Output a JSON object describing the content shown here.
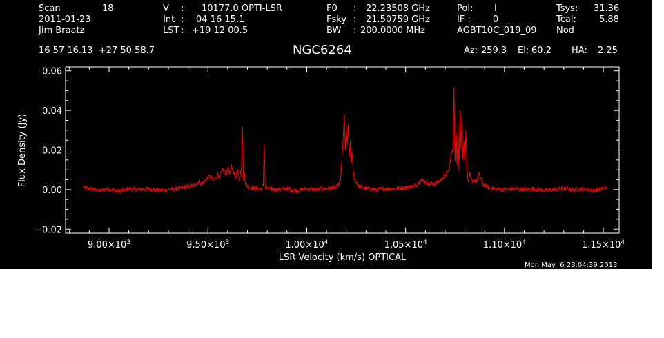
{
  "header": {
    "scan_label": "Scan",
    "scan_value": "18",
    "date": "2011-01-23",
    "observer": "Jim Braatz",
    "v_label": "V",
    "v_value": "10177.0 OPTI-LSR",
    "int_label": "Int",
    "int_value": "04 16 15.1",
    "lst_label": "LST",
    "lst_value": "+19 12 00.5",
    "f0_label": "F0",
    "f0_value": "22.23508 GHz",
    "fsky_label": "Fsky",
    "fsky_value": "21.50759 GHz",
    "bw_label": "BW",
    "bw_value": "200.0000 MHz",
    "pol_label": "Pol:",
    "pol_value": "I",
    "if_label": "IF :",
    "if_value": "0",
    "project": "AGBT10C_019_09",
    "tsys_label": "Tsys:",
    "tsys_value": "31.36",
    "tcal_label": "Tcal:",
    "tcal_value": "5.88",
    "mode": "Nod",
    "coords": "16 57 16.13  +27 50 58.7",
    "source": "NGC6264",
    "az_label": "Az:",
    "az_value": "259.3",
    "el_label": "El:",
    "el_value": "60.2",
    "ha_label": "HA:",
    "ha_value": "2.25",
    "timestamp": "Mon May  6 23:04:39 2013"
  },
  "chart_data": {
    "type": "line",
    "xlabel": "LSR Velocity (km/s) OPTICAL",
    "ylabel": "Flux Density (Jy)",
    "xlim": [
      8780,
      11580
    ],
    "ylim": [
      -0.022,
      0.062
    ],
    "xticks": [
      {
        "value": 9000,
        "mant": "9.00×10",
        "exp": "3"
      },
      {
        "value": 9500,
        "mant": "9.50×10",
        "exp": "3"
      },
      {
        "value": 10000,
        "mant": "1.00×10",
        "exp": "4"
      },
      {
        "value": 10500,
        "mant": "1.05×10",
        "exp": "4"
      },
      {
        "value": 11000,
        "mant": "1.10×10",
        "exp": "4"
      },
      {
        "value": 11500,
        "mant": "1.15×10",
        "exp": "4"
      }
    ],
    "yticks": [
      {
        "value": -0.02,
        "label": "−0.02"
      },
      {
        "value": 0.0,
        "label": "0.00"
      },
      {
        "value": 0.02,
        "label": "0.02"
      },
      {
        "value": 0.04,
        "label": "0.04"
      },
      {
        "value": 0.06,
        "label": "0.06"
      }
    ],
    "series_color": "#ff0000",
    "series": [
      {
        "x": [
          8870,
          8900,
          8950,
          9000,
          9050,
          9100,
          9150,
          9200,
          9250,
          9300,
          9350,
          9400,
          9430,
          9450,
          9470,
          9490,
          9510,
          9530,
          9550,
          9560,
          9570,
          9580,
          9590,
          9600,
          9610,
          9620,
          9630,
          9640,
          9650,
          9660,
          9670,
          9675,
          9680,
          9685,
          9690,
          9700,
          9720,
          9740,
          9770,
          9780,
          9785,
          9790,
          9800,
          9850,
          9900,
          9950,
          10000,
          10050,
          10100,
          10150,
          10170,
          10180,
          10190,
          10195,
          10200,
          10205,
          10210,
          10215,
          10220,
          10225,
          10230,
          10235,
          10240,
          10250,
          10260,
          10280,
          10300,
          10350,
          10400,
          10450,
          10500,
          10550,
          10580,
          10600,
          10620,
          10650,
          10680,
          10700,
          10720,
          10730,
          10740,
          10745,
          10750,
          10755,
          10760,
          10765,
          10770,
          10775,
          10780,
          10785,
          10790,
          10795,
          10800,
          10805,
          10810,
          10815,
          10820,
          10825,
          10830,
          10840,
          10850,
          10860,
          10870,
          10880,
          10890,
          10900,
          10920,
          10950,
          11000,
          11050,
          11100,
          11150,
          11200,
          11250,
          11300,
          11350,
          11400,
          11450,
          11500,
          11520
        ],
        "y": [
          0.001,
          0.0005,
          -0.0005,
          0.0005,
          -0.001,
          0.0005,
          0.0,
          0.0005,
          -0.0005,
          0.0,
          0.0005,
          0.0015,
          0.002,
          0.004,
          0.003,
          0.005,
          0.007,
          0.004,
          0.008,
          0.006,
          0.009,
          0.01,
          0.007,
          0.011,
          0.008,
          0.012,
          0.009,
          0.006,
          0.01,
          0.005,
          0.012,
          0.033,
          0.004,
          0.01,
          0.003,
          0.002,
          0.001,
          0.0005,
          0.0005,
          0.002,
          0.024,
          0.001,
          0.0005,
          0.0,
          0.0005,
          -0.0005,
          0.0005,
          0.0,
          0.0005,
          0.001,
          0.004,
          0.018,
          0.037,
          0.02,
          0.031,
          0.022,
          0.034,
          0.016,
          0.025,
          0.013,
          0.018,
          0.009,
          0.006,
          0.004,
          0.002,
          0.001,
          0.0005,
          0.0,
          0.0005,
          0.0005,
          0.001,
          0.002,
          0.005,
          0.004,
          0.003,
          0.003,
          0.005,
          0.007,
          0.01,
          0.018,
          0.02,
          0.053,
          0.015,
          0.028,
          0.012,
          0.035,
          0.01,
          0.041,
          0.02,
          0.038,
          0.015,
          0.025,
          0.012,
          0.031,
          0.01,
          0.006,
          0.004,
          0.009,
          0.005,
          0.003,
          0.005,
          0.004,
          0.008,
          0.006,
          0.003,
          0.002,
          0.001,
          0.0005,
          0.0,
          0.0005,
          0.0,
          0.0005,
          -0.0005,
          0.0,
          0.0005,
          0.0,
          0.0005,
          -0.0005,
          0.0005,
          0.001
        ]
      }
    ]
  }
}
